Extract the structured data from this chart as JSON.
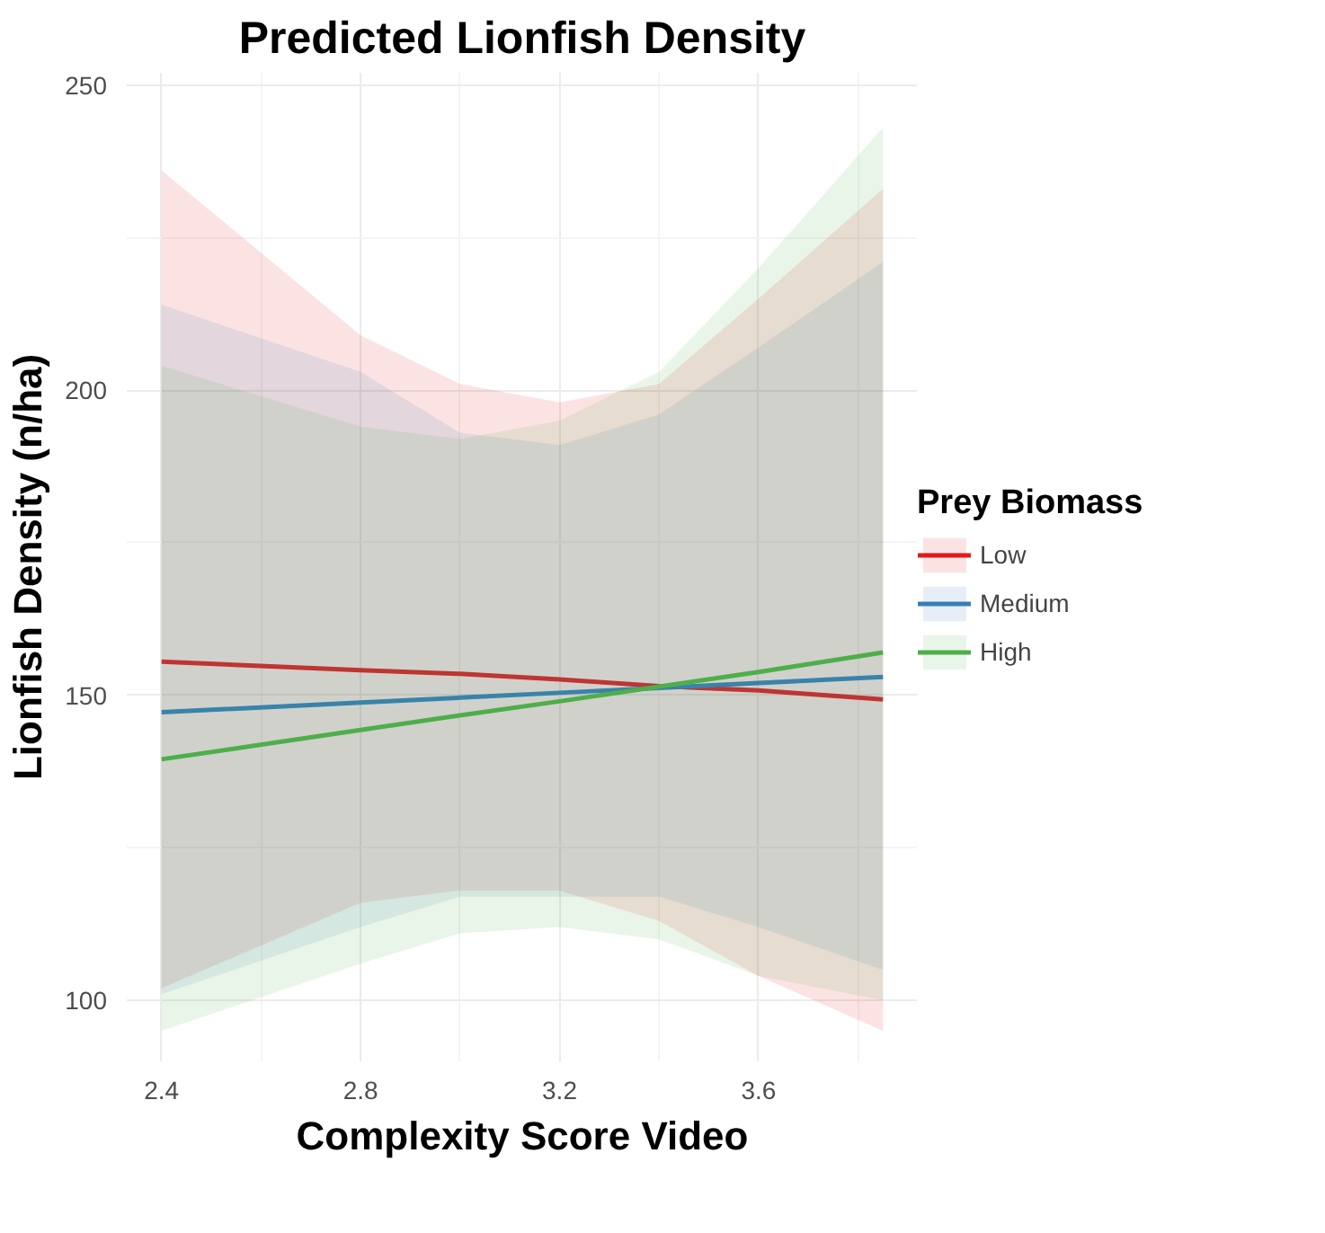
{
  "chart_data": {
    "type": "line",
    "title": "Predicted Lionfish Density",
    "xlabel": "Complexity Score Video",
    "ylabel": "Lionfish Density (n/ha)",
    "legend_title": "Prey Biomass",
    "x": [
      2.4,
      2.8,
      3.0,
      3.2,
      3.4,
      3.6,
      3.85
    ],
    "series": [
      {
        "name": "Low",
        "color": "#e41a1c",
        "values": [
          155.5,
          154.1,
          153.5,
          152.6,
          151.5,
          150.8,
          149.3
        ],
        "lower": [
          102,
          116,
          118,
          118,
          113,
          104,
          95
        ],
        "upper": [
          236,
          209,
          201,
          198,
          201,
          215,
          233
        ]
      },
      {
        "name": "Medium",
        "color": "#377eb8",
        "values": [
          147.2,
          148.8,
          149.6,
          150.4,
          151.2,
          152,
          153
        ],
        "lower": [
          101,
          112,
          117,
          117,
          117,
          112,
          105
        ],
        "upper": [
          214,
          203,
          193,
          191,
          196,
          207,
          221
        ]
      },
      {
        "name": "High",
        "color": "#4daf4a",
        "values": [
          139.5,
          144.3,
          146.7,
          149,
          151.4,
          153.8,
          157
        ],
        "lower": [
          95,
          106,
          111,
          112,
          110,
          104,
          100
        ],
        "upper": [
          204,
          194,
          192,
          195,
          203,
          220,
          243
        ]
      }
    ],
    "xlim": [
      2.33,
      3.92
    ],
    "ylim": [
      90,
      252
    ],
    "xticks": [
      2.4,
      2.8,
      3.2,
      3.6
    ],
    "yticks": [
      100,
      150,
      200,
      250
    ],
    "grid": true,
    "legend": "right"
  }
}
